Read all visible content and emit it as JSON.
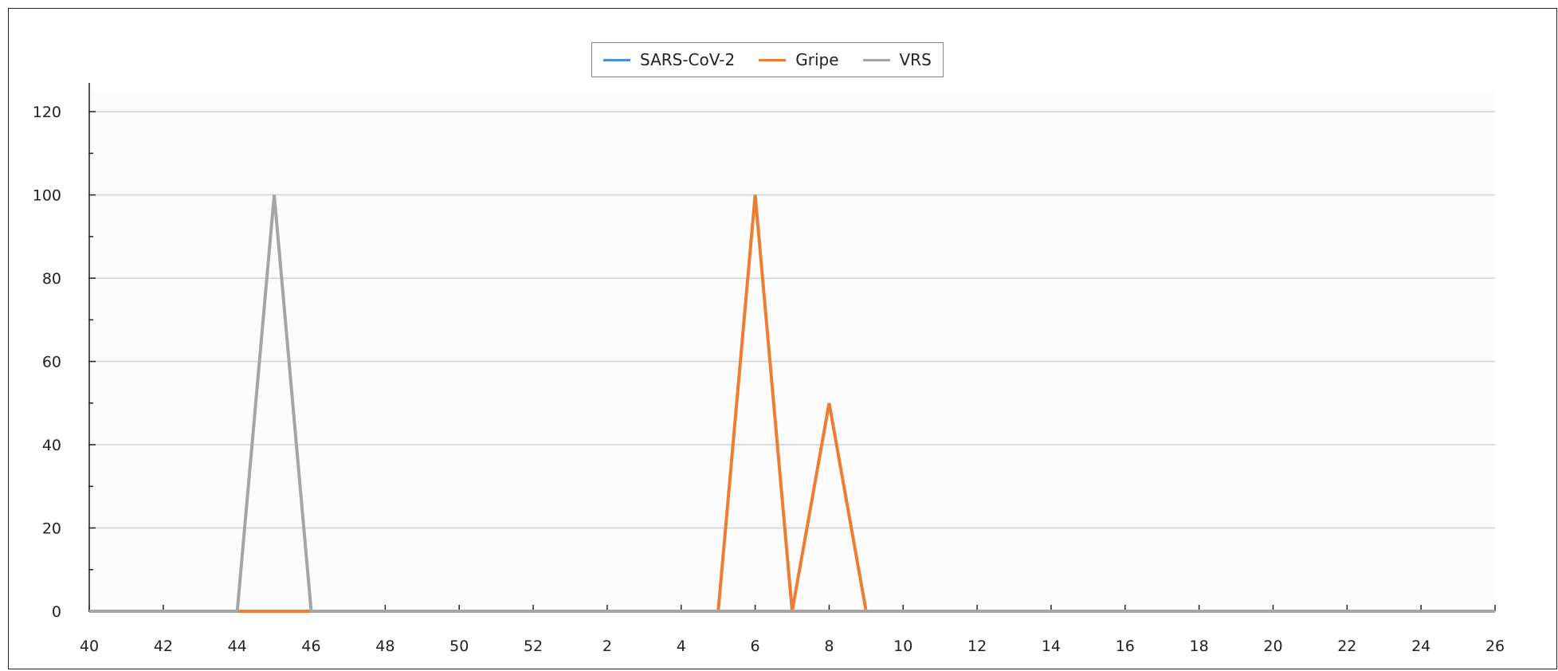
{
  "chart_data": {
    "type": "line",
    "title": "",
    "xlabel": "",
    "ylabel": "",
    "x_tick_labels": [
      "40",
      "42",
      "44",
      "46",
      "48",
      "50",
      "52",
      "2",
      "4",
      "6",
      "8",
      "10",
      "12",
      "14",
      "16",
      "18",
      "20",
      "22",
      "24",
      "26"
    ],
    "x_weeks": [
      "40",
      "41",
      "42",
      "43",
      "44",
      "45",
      "46",
      "47",
      "48",
      "49",
      "50",
      "51",
      "52",
      "1",
      "2",
      "3",
      "4",
      "5",
      "6",
      "7",
      "8",
      "9",
      "10",
      "11",
      "12",
      "13",
      "14",
      "15",
      "16",
      "17",
      "18",
      "19",
      "20",
      "21",
      "22",
      "23",
      "24",
      "25",
      "26"
    ],
    "ylim": [
      0,
      125
    ],
    "y_ticks": [
      0,
      20,
      40,
      60,
      80,
      100,
      120
    ],
    "grid": true,
    "legend_position": "top-center",
    "series": [
      {
        "name": "SARS-CoV-2",
        "color": "#4a90d9",
        "values": [
          0,
          0,
          0,
          0,
          0,
          0,
          0,
          0,
          0,
          0,
          0,
          0,
          0,
          0,
          0,
          0,
          0,
          0,
          0,
          0,
          0,
          0,
          0,
          0,
          0,
          0,
          0,
          0,
          0,
          0,
          0,
          0,
          0,
          0,
          0,
          0,
          0,
          0,
          0
        ]
      },
      {
        "name": "Gripe",
        "color": "#ed7d31",
        "values": [
          0,
          0,
          0,
          0,
          0,
          0,
          0,
          0,
          0,
          0,
          0,
          0,
          0,
          0,
          0,
          0,
          0,
          0,
          100,
          0,
          50,
          0,
          0,
          0,
          0,
          0,
          0,
          0,
          0,
          0,
          0,
          0,
          0,
          0,
          0,
          0,
          0,
          0,
          0
        ]
      },
      {
        "name": "VRS",
        "color": "#a5a5a5",
        "values": [
          0,
          0,
          0,
          0,
          0,
          100,
          0,
          0,
          0,
          0,
          0,
          0,
          0,
          0,
          0,
          0,
          0,
          0,
          0,
          0,
          0,
          0,
          0,
          0,
          0,
          0,
          0,
          0,
          0,
          0,
          0,
          0,
          0,
          0,
          0,
          0,
          0,
          0,
          0
        ]
      }
    ]
  }
}
